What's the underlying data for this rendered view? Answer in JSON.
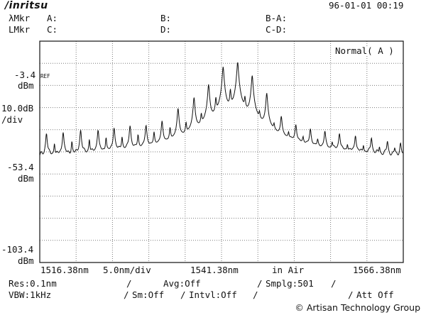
{
  "header": {
    "brand": "/inritsu",
    "datetime": "96-01-01 00:19",
    "markers": {
      "wl_label": "λMkr",
      "lvl_label": "LMkr",
      "a": "A:",
      "b": "B:",
      "c": "C:",
      "d": "D:",
      "b_minus_a": "B-A:",
      "c_minus_d": "C-D:"
    }
  },
  "display": {
    "mode": "Normal( A )",
    "ref_tag": "REF",
    "top_level": "-3.4",
    "top_unit": "dBm",
    "scale_value": "10.0dB",
    "scale_unit": "/div",
    "mid_level": "-53.4",
    "mid_unit": "dBm",
    "bottom_level": "-103.4",
    "bottom_unit": "dBm"
  },
  "x_axis": {
    "start": "1516.38nm",
    "span_div": "5.0nm/div",
    "center": "1541.38nm",
    "medium": "in Air",
    "stop": "1566.38nm"
  },
  "settings": {
    "res": "Res:0.1nm",
    "avg": "Avg:Off",
    "smplg": "Smplg:501",
    "vbw": "VBW:1kHz",
    "sm": "Sm:Off",
    "intvl": "Intvl:Off",
    "att": "Att Off"
  },
  "credit": "© Artisan Technology Group",
  "colors": {
    "trace": "#111111",
    "grid": "#7a7a7a",
    "background": "#ffffff"
  },
  "chart_data": {
    "type": "line",
    "xlabel": "",
    "ylabel": "",
    "x_range_nm": [
      1516.38,
      1566.38
    ],
    "y_range_dbm": [
      -103.4,
      -3.4
    ],
    "y_per_div_db": 10,
    "grid": true,
    "baseline_dbm": -58,
    "series": [
      {
        "comb_peaks": [
          {
            "x": 1517.3,
            "y": -45.5
          },
          {
            "x": 1519.6,
            "y": -45
          },
          {
            "x": 1522.0,
            "y": -44
          },
          {
            "x": 1524.4,
            "y": -44
          },
          {
            "x": 1526.6,
            "y": -43
          },
          {
            "x": 1528.8,
            "y": -42
          },
          {
            "x": 1531.0,
            "y": -42
          },
          {
            "x": 1533.2,
            "y": -40
          },
          {
            "x": 1535.4,
            "y": -34
          },
          {
            "x": 1537.6,
            "y": -29
          },
          {
            "x": 1539.6,
            "y": -23
          },
          {
            "x": 1541.6,
            "y": -15
          },
          {
            "x": 1543.6,
            "y": -13
          },
          {
            "x": 1545.6,
            "y": -19
          },
          {
            "x": 1547.6,
            "y": -27
          },
          {
            "x": 1549.6,
            "y": -38
          },
          {
            "x": 1551.6,
            "y": -42
          },
          {
            "x": 1553.6,
            "y": -44
          },
          {
            "x": 1555.6,
            "y": -45
          },
          {
            "x": 1557.6,
            "y": -46
          },
          {
            "x": 1559.8,
            "y": -47
          },
          {
            "x": 1562.0,
            "y": -48
          },
          {
            "x": 1564.2,
            "y": -50
          },
          {
            "x": 1566.0,
            "y": -51
          }
        ],
        "side_peaks": [
          {
            "x": 1518.4,
            "y": -51
          },
          {
            "x": 1520.8,
            "y": -50
          },
          {
            "x": 1523.2,
            "y": -49
          },
          {
            "x": 1525.5,
            "y": -48
          },
          {
            "x": 1527.7,
            "y": -48
          },
          {
            "x": 1529.9,
            "y": -47
          },
          {
            "x": 1532.1,
            "y": -46
          },
          {
            "x": 1534.3,
            "y": -44
          },
          {
            "x": 1536.5,
            "y": -42
          },
          {
            "x": 1538.6,
            "y": -38
          },
          {
            "x": 1540.6,
            "y": -30
          },
          {
            "x": 1542.6,
            "y": -26
          },
          {
            "x": 1544.6,
            "y": -30
          },
          {
            "x": 1546.6,
            "y": -38
          },
          {
            "x": 1548.6,
            "y": -44
          },
          {
            "x": 1550.6,
            "y": -48
          },
          {
            "x": 1552.6,
            "y": -50
          },
          {
            "x": 1554.6,
            "y": -51
          },
          {
            "x": 1556.6,
            "y": -52
          },
          {
            "x": 1558.7,
            "y": -53
          },
          {
            "x": 1560.9,
            "y": -53
          },
          {
            "x": 1563.1,
            "y": -54
          },
          {
            "x": 1565.2,
            "y": -55
          }
        ]
      }
    ]
  }
}
